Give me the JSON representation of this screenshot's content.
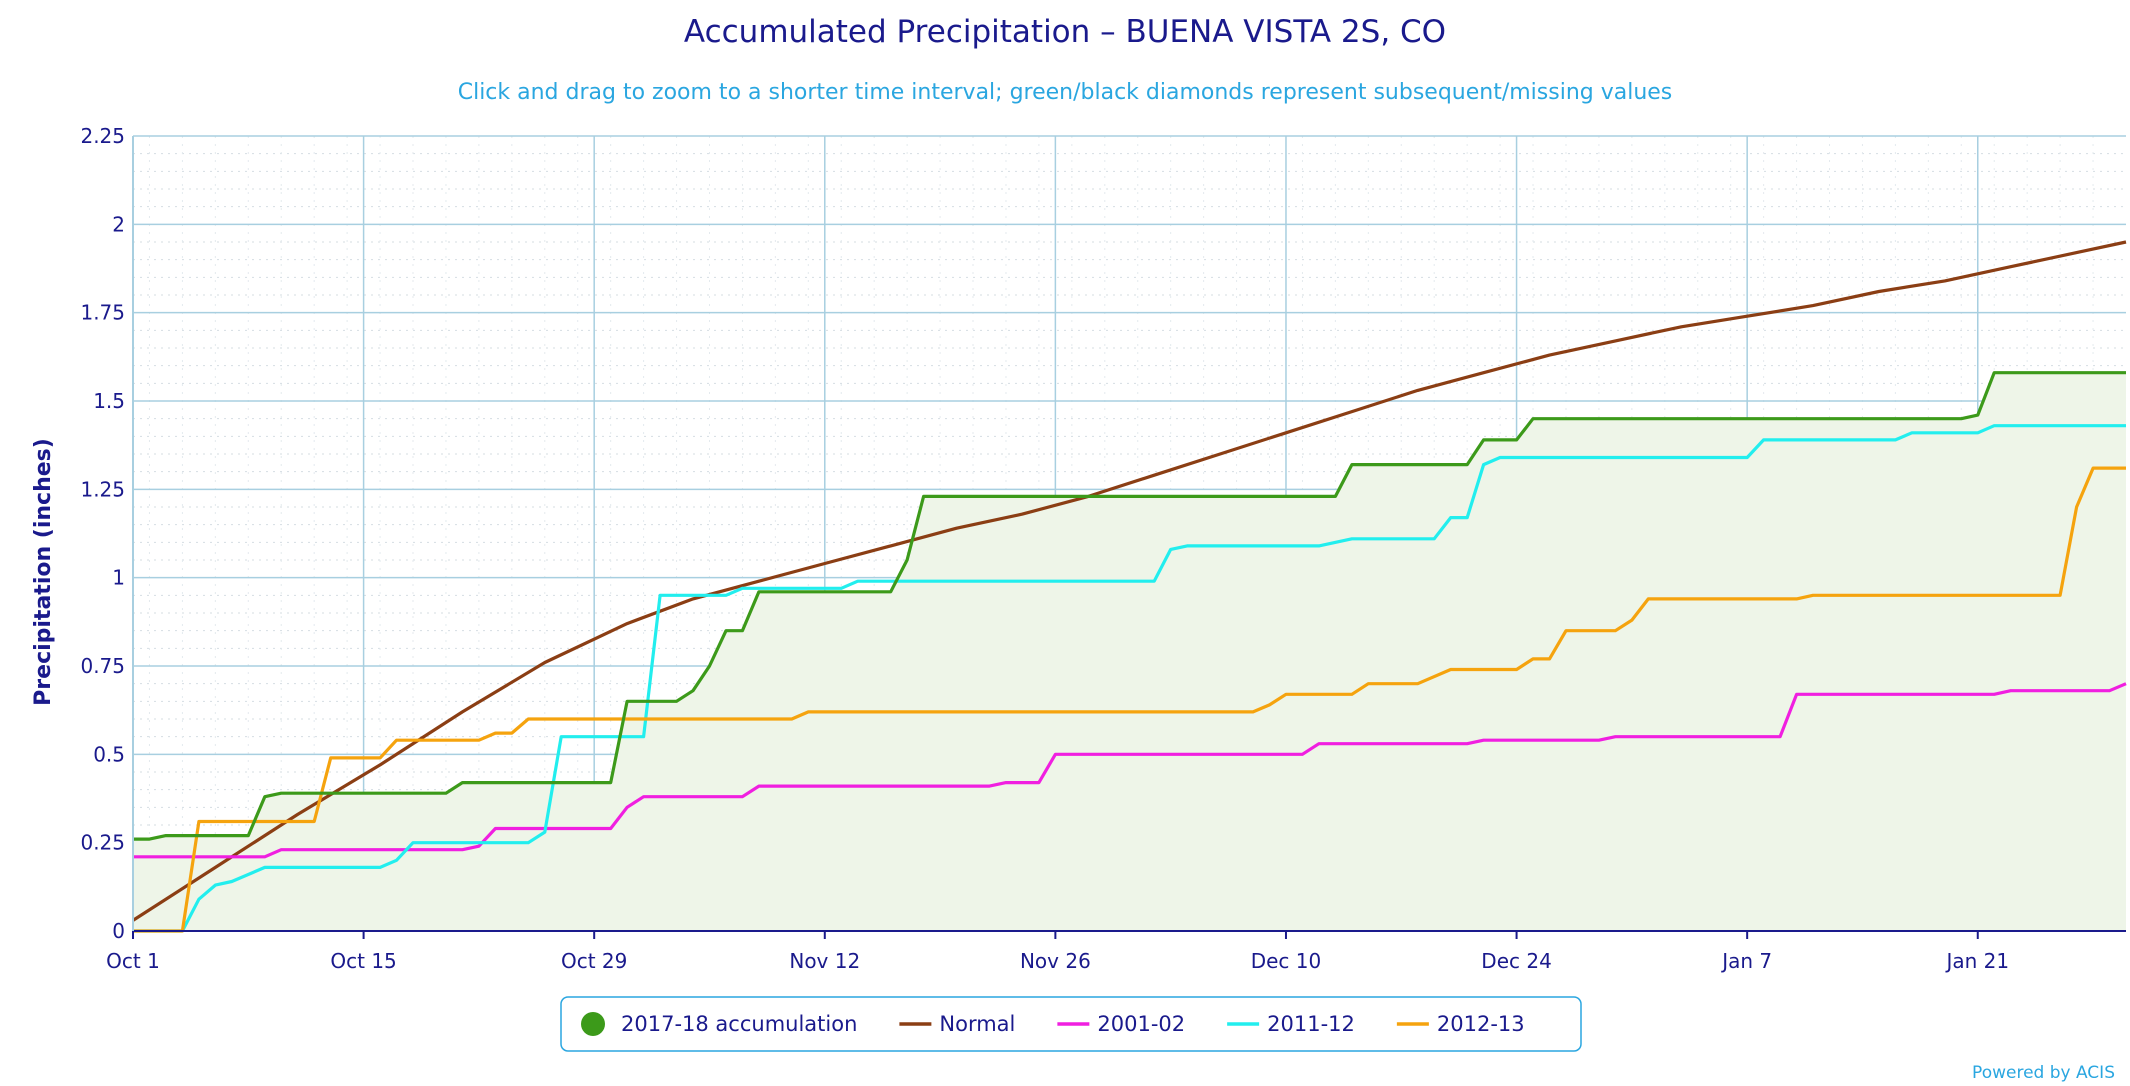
{
  "chart_data": {
    "type": "line",
    "title": "Accumulated Precipitation – BUENA VISTA 2S, CO",
    "subtitle": "Click and drag to zoom to a shorter time interval; green/black diamonds represent subsequent/missing values",
    "ylabel": "Precipitation (inches)",
    "xlabel": "",
    "credit": "Powered by ACIS",
    "x_unit": "day of season (Oct 1 = 0)",
    "xlim": [
      0,
      121
    ],
    "ylim": [
      0,
      2.25
    ],
    "yticks": [
      {
        "value": 0,
        "label": "0"
      },
      {
        "value": 0.25,
        "label": "0.25"
      },
      {
        "value": 0.5,
        "label": "0.5"
      },
      {
        "value": 0.75,
        "label": "0.75"
      },
      {
        "value": 1,
        "label": "1"
      },
      {
        "value": 1.25,
        "label": "1.25"
      },
      {
        "value": 1.5,
        "label": "1.5"
      },
      {
        "value": 1.75,
        "label": "1.75"
      },
      {
        "value": 2,
        "label": "2"
      },
      {
        "value": 2.25,
        "label": "2.25"
      }
    ],
    "xticks": [
      {
        "value": 0,
        "label": "Oct 1"
      },
      {
        "value": 14,
        "label": "Oct 15"
      },
      {
        "value": 28,
        "label": "Oct 29"
      },
      {
        "value": 42,
        "label": "Nov 12"
      },
      {
        "value": 56,
        "label": "Nov 26"
      },
      {
        "value": 70,
        "label": "Dec 10"
      },
      {
        "value": 84,
        "label": "Dec 24"
      },
      {
        "value": 98,
        "label": "Jan 7"
      },
      {
        "value": 112,
        "label": "Jan 21"
      }
    ],
    "grid": true,
    "legend_position": "bottom-center",
    "series": [
      {
        "name": "2017-18 accumulation",
        "color": "#3c9a1a",
        "fill": "#eef5e8",
        "marker": "circle",
        "points": [
          [
            0,
            0.26
          ],
          [
            1,
            0.26
          ],
          [
            2,
            0.27
          ],
          [
            7,
            0.27
          ],
          [
            8,
            0.38
          ],
          [
            9,
            0.39
          ],
          [
            19,
            0.39
          ],
          [
            20,
            0.42
          ],
          [
            29,
            0.42
          ],
          [
            30,
            0.65
          ],
          [
            33,
            0.65
          ],
          [
            34,
            0.68
          ],
          [
            35,
            0.75
          ],
          [
            36,
            0.85
          ],
          [
            37,
            0.85
          ],
          [
            38,
            0.96
          ],
          [
            46,
            0.96
          ],
          [
            47,
            1.05
          ],
          [
            48,
            1.23
          ],
          [
            73,
            1.23
          ],
          [
            74,
            1.32
          ],
          [
            81,
            1.32
          ],
          [
            82,
            1.39
          ],
          [
            84,
            1.39
          ],
          [
            85,
            1.45
          ],
          [
            111,
            1.45
          ],
          [
            112,
            1.46
          ],
          [
            113,
            1.58
          ],
          [
            121,
            1.58
          ]
        ]
      },
      {
        "name": "Normal",
        "color": "#8b3e14",
        "points": [
          [
            0,
            0.03
          ],
          [
            5,
            0.18
          ],
          [
            10,
            0.33
          ],
          [
            15,
            0.47
          ],
          [
            20,
            0.62
          ],
          [
            25,
            0.76
          ],
          [
            30,
            0.87
          ],
          [
            34,
            0.94
          ],
          [
            38,
            0.99
          ],
          [
            42,
            1.04
          ],
          [
            46,
            1.09
          ],
          [
            50,
            1.14
          ],
          [
            54,
            1.18
          ],
          [
            58,
            1.23
          ],
          [
            62,
            1.29
          ],
          [
            66,
            1.35
          ],
          [
            70,
            1.41
          ],
          [
            74,
            1.47
          ],
          [
            78,
            1.53
          ],
          [
            82,
            1.58
          ],
          [
            86,
            1.63
          ],
          [
            90,
            1.67
          ],
          [
            94,
            1.71
          ],
          [
            98,
            1.74
          ],
          [
            102,
            1.77
          ],
          [
            106,
            1.81
          ],
          [
            110,
            1.84
          ],
          [
            114,
            1.88
          ],
          [
            118,
            1.92
          ],
          [
            121,
            1.95
          ]
        ]
      },
      {
        "name": "2001-02",
        "color": "#f01fe0",
        "points": [
          [
            0,
            0.21
          ],
          [
            8,
            0.21
          ],
          [
            9,
            0.23
          ],
          [
            20,
            0.23
          ],
          [
            21,
            0.24
          ],
          [
            22,
            0.29
          ],
          [
            29,
            0.29
          ],
          [
            30,
            0.35
          ],
          [
            31,
            0.38
          ],
          [
            37,
            0.38
          ],
          [
            38,
            0.41
          ],
          [
            52,
            0.41
          ],
          [
            53,
            0.42
          ],
          [
            55,
            0.42
          ],
          [
            56,
            0.5
          ],
          [
            71,
            0.5
          ],
          [
            72,
            0.53
          ],
          [
            81,
            0.53
          ],
          [
            82,
            0.54
          ],
          [
            89,
            0.54
          ],
          [
            90,
            0.55
          ],
          [
            100,
            0.55
          ],
          [
            101,
            0.67
          ],
          [
            113,
            0.67
          ],
          [
            114,
            0.68
          ],
          [
            120,
            0.68
          ],
          [
            121,
            0.7
          ]
        ]
      },
      {
        "name": "2011-12",
        "color": "#22eeee",
        "points": [
          [
            0,
            0
          ],
          [
            3,
            0
          ],
          [
            4,
            0.09
          ],
          [
            5,
            0.13
          ],
          [
            6,
            0.14
          ],
          [
            8,
            0.18
          ],
          [
            15,
            0.18
          ],
          [
            16,
            0.2
          ],
          [
            17,
            0.25
          ],
          [
            24,
            0.25
          ],
          [
            25,
            0.28
          ],
          [
            26,
            0.55
          ],
          [
            31,
            0.55
          ],
          [
            32,
            0.95
          ],
          [
            36,
            0.95
          ],
          [
            37,
            0.97
          ],
          [
            43,
            0.97
          ],
          [
            44,
            0.99
          ],
          [
            62,
            0.99
          ],
          [
            63,
            1.08
          ],
          [
            64,
            1.09
          ],
          [
            72,
            1.09
          ],
          [
            74,
            1.11
          ],
          [
            79,
            1.11
          ],
          [
            80,
            1.17
          ],
          [
            81,
            1.17
          ],
          [
            82,
            1.32
          ],
          [
            83,
            1.34
          ],
          [
            98,
            1.34
          ],
          [
            99,
            1.39
          ],
          [
            107,
            1.39
          ],
          [
            108,
            1.41
          ],
          [
            112,
            1.41
          ],
          [
            113,
            1.43
          ],
          [
            121,
            1.43
          ]
        ]
      },
      {
        "name": "2012-13",
        "color": "#f5a30e",
        "points": [
          [
            0,
            0
          ],
          [
            3,
            0
          ],
          [
            4,
            0.31
          ],
          [
            11,
            0.31
          ],
          [
            12,
            0.49
          ],
          [
            15,
            0.49
          ],
          [
            16,
            0.54
          ],
          [
            21,
            0.54
          ],
          [
            22,
            0.56
          ],
          [
            23,
            0.56
          ],
          [
            24,
            0.6
          ],
          [
            40,
            0.6
          ],
          [
            41,
            0.62
          ],
          [
            68,
            0.62
          ],
          [
            69,
            0.64
          ],
          [
            70,
            0.67
          ],
          [
            74,
            0.67
          ],
          [
            75,
            0.7
          ],
          [
            78,
            0.7
          ],
          [
            80,
            0.74
          ],
          [
            84,
            0.74
          ],
          [
            85,
            0.77
          ],
          [
            86,
            0.77
          ],
          [
            87,
            0.85
          ],
          [
            90,
            0.85
          ],
          [
            91,
            0.88
          ],
          [
            92,
            0.94
          ],
          [
            101,
            0.94
          ],
          [
            102,
            0.95
          ],
          [
            117,
            0.95
          ],
          [
            118,
            1.2
          ],
          [
            119,
            1.31
          ],
          [
            121,
            1.31
          ]
        ]
      }
    ]
  }
}
